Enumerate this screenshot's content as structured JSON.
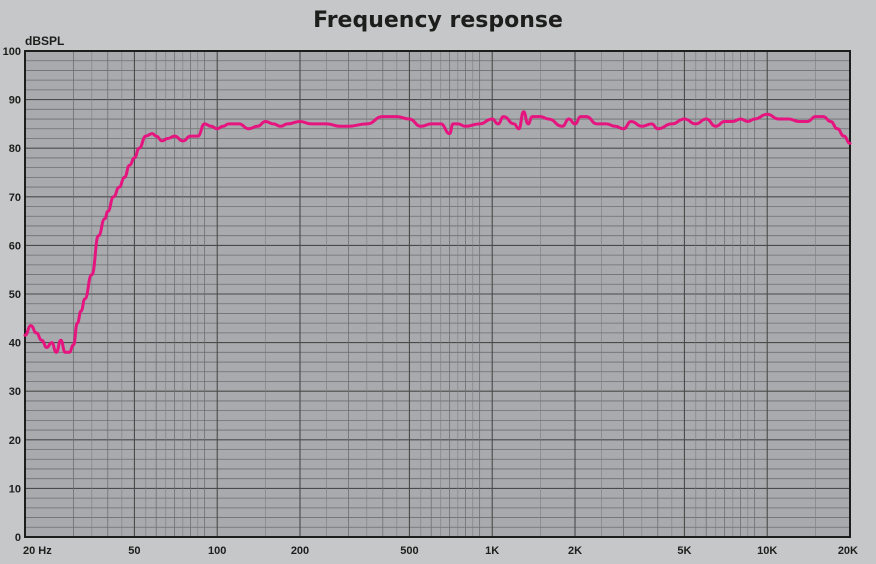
{
  "chart_data": {
    "type": "line",
    "title": "Frequency response",
    "ylabel": "dBSPL",
    "xlabel": "",
    "xscale": "log",
    "xlim": [
      20,
      20000
    ],
    "ylim": [
      0,
      100
    ],
    "grid": true,
    "line_color": "#e5147f",
    "y_ticks": [
      0,
      10,
      20,
      30,
      40,
      50,
      60,
      70,
      80,
      90,
      100
    ],
    "x_ticks": [
      {
        "value": 20,
        "label": "20 Hz"
      },
      {
        "value": 50,
        "label": "50"
      },
      {
        "value": 100,
        "label": "100"
      },
      {
        "value": 200,
        "label": "200"
      },
      {
        "value": 500,
        "label": "500"
      },
      {
        "value": 1000,
        "label": "1K"
      },
      {
        "value": 2000,
        "label": "2K"
      },
      {
        "value": 5000,
        "label": "5K"
      },
      {
        "value": 10000,
        "label": "10K"
      },
      {
        "value": 20000,
        "label": "20K"
      }
    ],
    "series": [
      {
        "x": [
          20,
          21,
          22,
          23,
          24,
          25,
          26,
          27,
          28,
          29,
          30,
          31,
          32,
          33,
          35,
          37,
          39,
          40,
          42,
          44,
          46,
          48,
          50,
          52,
          55,
          58,
          60,
          63,
          66,
          70,
          75,
          80,
          85,
          90,
          95,
          100,
          105,
          110,
          120,
          130,
          140,
          150,
          160,
          170,
          180,
          200,
          220,
          250,
          280,
          300,
          350,
          400,
          450,
          500,
          550,
          600,
          650,
          700,
          720,
          750,
          800,
          900,
          1000,
          1050,
          1100,
          1200,
          1250,
          1300,
          1350,
          1400,
          1500,
          1600,
          1800,
          1900,
          2000,
          2100,
          2200,
          2400,
          2600,
          2800,
          3000,
          3200,
          3500,
          3800,
          4000,
          4500,
          5000,
          5500,
          6000,
          6500,
          7000,
          7500,
          8000,
          8500,
          9000,
          10000,
          11000,
          12000,
          13000,
          14000,
          15000,
          16000,
          17000,
          18000,
          19000,
          20000
        ],
        "y": [
          41.5,
          43.5,
          42,
          40.5,
          39,
          40,
          38,
          40.5,
          38,
          38,
          39.5,
          44,
          46.5,
          49,
          54,
          62,
          65.5,
          67,
          70,
          72,
          74,
          76.5,
          78,
          80,
          82.5,
          83,
          82.5,
          81.5,
          82,
          82.5,
          81.5,
          82.5,
          82.5,
          85,
          84.5,
          84,
          84.5,
          85,
          85,
          84,
          84.5,
          85.5,
          85,
          84.5,
          85,
          85.5,
          85,
          85,
          84.5,
          84.5,
          85,
          86.5,
          86.5,
          86,
          84.5,
          85,
          85,
          83,
          85,
          85,
          84.5,
          85,
          86,
          85,
          86.5,
          85,
          84,
          87.5,
          85,
          86.5,
          86.5,
          86,
          84.5,
          86,
          85,
          86.5,
          86.5,
          85,
          85,
          84.5,
          84,
          85.5,
          84.5,
          85,
          84,
          85,
          86,
          85,
          86,
          84.5,
          85.5,
          85.5,
          86,
          85.5,
          86,
          87,
          86,
          86,
          85.5,
          85.5,
          86.5,
          86.5,
          85.5,
          84,
          82.5,
          81
        ]
      }
    ]
  }
}
